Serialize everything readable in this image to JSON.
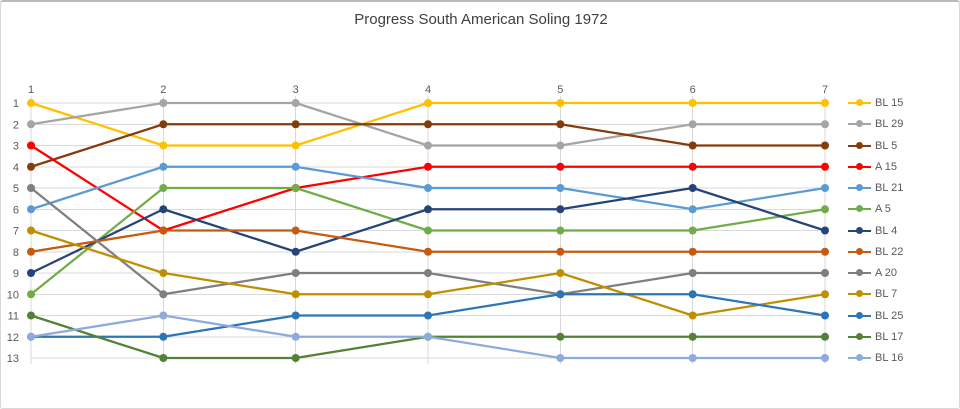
{
  "chart_data": {
    "type": "line",
    "title": "Progress South American Soling 1972",
    "xlabel": "",
    "ylabel": "",
    "x": [
      1,
      2,
      3,
      4,
      5,
      6,
      7
    ],
    "x_tick_labels": [
      "1",
      "2",
      "3",
      "4",
      "5",
      "6",
      "7"
    ],
    "y_tick_labels": [
      "1",
      "2",
      "3",
      "4",
      "5",
      "6",
      "7",
      "8",
      "9",
      "10",
      "11",
      "12",
      "13"
    ],
    "y_axis": {
      "min": 1,
      "max": 13,
      "inverted": true
    },
    "grid": true,
    "legend_position": "right",
    "grid_color": "#d9d9d9",
    "tick_label_color": "#595959",
    "title_color": "#404040",
    "series": [
      {
        "name": "BL 15",
        "color": "#FFC000",
        "values": [
          1,
          3,
          3,
          1,
          1,
          1,
          1
        ]
      },
      {
        "name": "BL 29",
        "color": "#A5A5A5",
        "values": [
          2,
          1,
          1,
          3,
          3,
          2,
          2
        ]
      },
      {
        "name": "BL 5",
        "color": "#843C0C",
        "values": [
          4,
          2,
          2,
          2,
          2,
          3,
          3
        ]
      },
      {
        "name": "A 15",
        "color": "#FF0000",
        "values": [
          3,
          7,
          5,
          4,
          4,
          4,
          4
        ]
      },
      {
        "name": "BL 21",
        "color": "#5B9BD5",
        "values": [
          6,
          4,
          4,
          5,
          5,
          6,
          5
        ]
      },
      {
        "name": "A 5",
        "color": "#70AD47",
        "values": [
          10,
          5,
          5,
          7,
          7,
          7,
          6
        ]
      },
      {
        "name": "BL 4",
        "color": "#264478",
        "values": [
          9,
          6,
          8,
          6,
          6,
          5,
          7
        ]
      },
      {
        "name": "BL 22",
        "color": "#C55A11",
        "values": [
          8,
          7,
          7,
          8,
          8,
          8,
          8
        ]
      },
      {
        "name": "A 20",
        "color": "#7F7F7F",
        "values": [
          5,
          10,
          9,
          9,
          10,
          9,
          9
        ]
      },
      {
        "name": "BL 7",
        "color": "#BF8F00",
        "values": [
          7,
          9,
          10,
          10,
          9,
          11,
          10
        ]
      },
      {
        "name": "BL 25",
        "color": "#2E75B6",
        "values": [
          12,
          12,
          11,
          11,
          10,
          10,
          11
        ]
      },
      {
        "name": "BL 17",
        "color": "#538135",
        "values": [
          11,
          13,
          13,
          12,
          12,
          12,
          12
        ]
      },
      {
        "name": "BL 16",
        "color": "#8FAADC",
        "values": [
          12,
          11,
          12,
          12,
          13,
          13,
          13
        ]
      }
    ]
  }
}
